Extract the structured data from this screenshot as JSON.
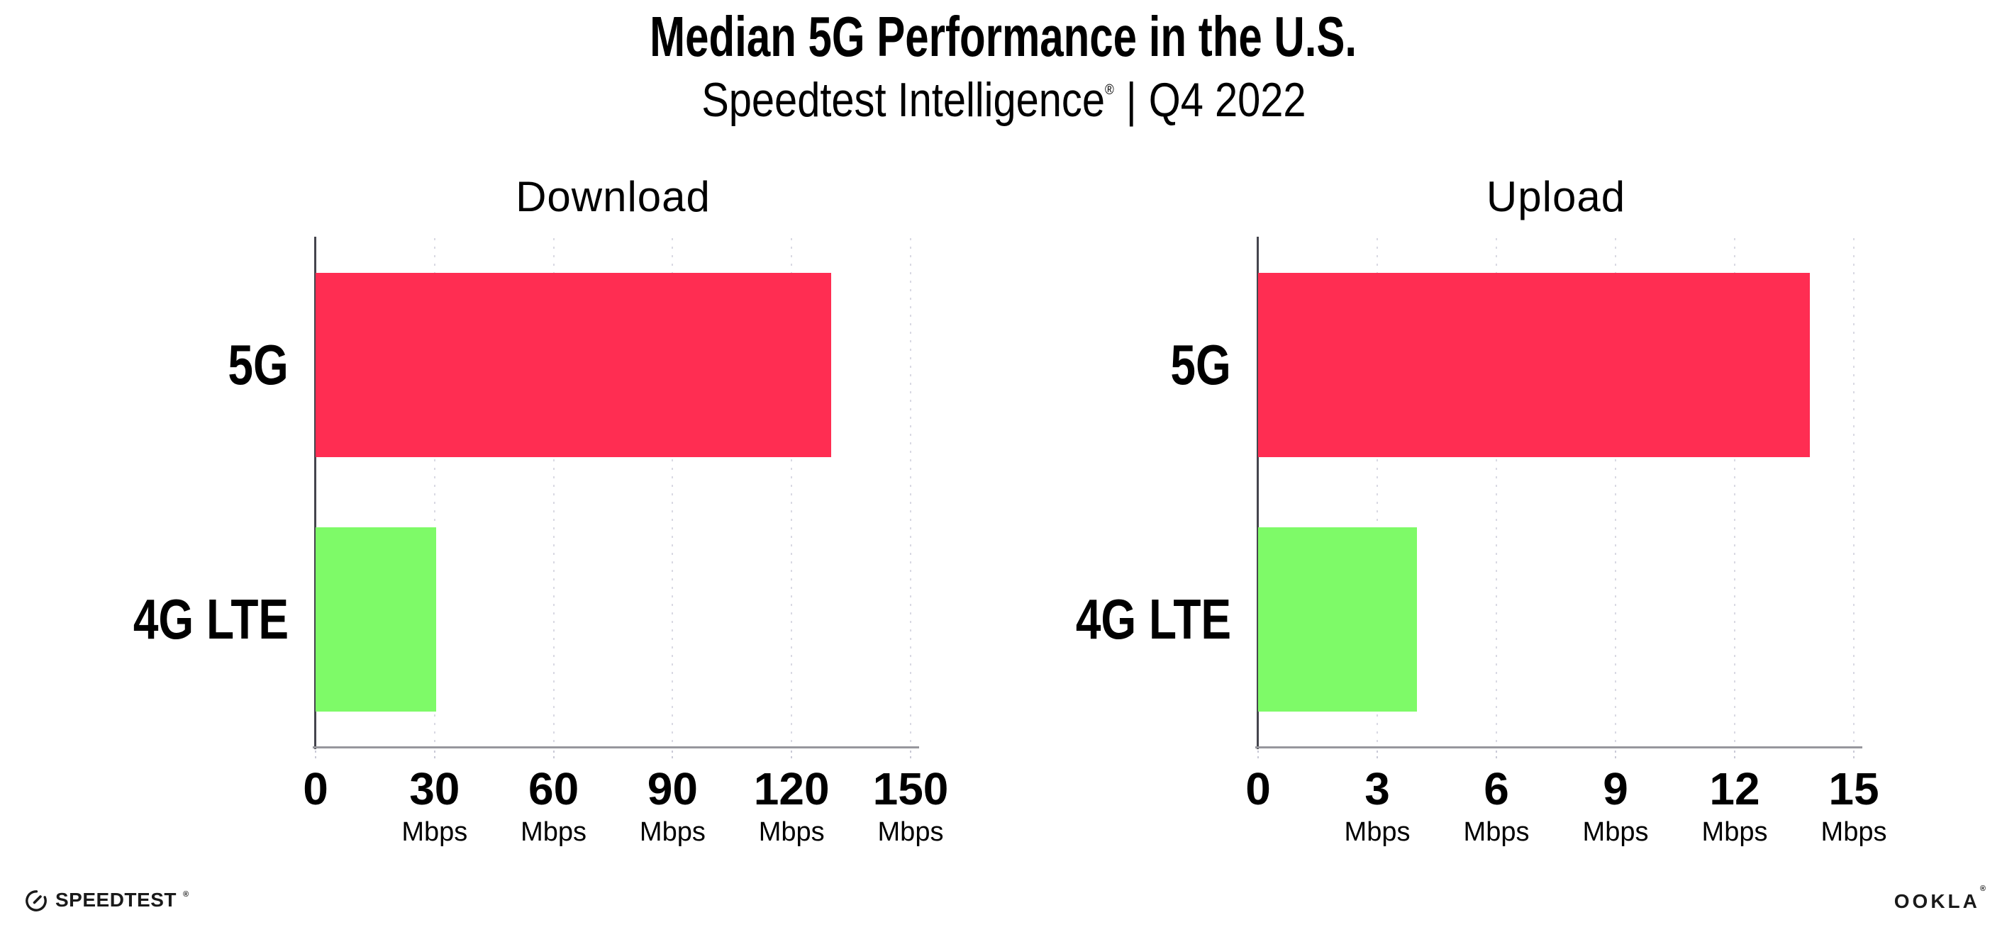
{
  "header": {
    "title": "Median 5G Performance in the U.S.",
    "subtitle_brand": "Speedtest Intelligence",
    "subtitle_reg": "®",
    "subtitle_divider": "|",
    "subtitle_period": "Q4 2022"
  },
  "chart_data": [
    {
      "type": "bar",
      "orientation": "horizontal",
      "title": "Download",
      "categories": [
        "5G",
        "4G LTE"
      ],
      "values": [
        130,
        30.4
      ],
      "unit": "Mbps",
      "xlim": [
        0,
        150
      ],
      "xticks": [
        0,
        30,
        60,
        90,
        120,
        150
      ],
      "bar_colors": [
        "#ff2d52",
        "#7efa68"
      ],
      "grid": "vertical dotted",
      "legend": "none"
    },
    {
      "type": "bar",
      "orientation": "horizontal",
      "title": "Upload",
      "categories": [
        "5G",
        "4G LTE"
      ],
      "values": [
        13.9,
        4.0
      ],
      "unit": "Mbps",
      "xlim": [
        0,
        15
      ],
      "xticks": [
        0,
        3,
        6,
        9,
        12,
        15
      ],
      "bar_colors": [
        "#ff2d52",
        "#7efa68"
      ],
      "grid": "vertical dotted",
      "legend": "none"
    }
  ],
  "colors": {
    "bar_5g": "#ff2d52",
    "bar_4g_lte": "#7efa68",
    "gridline": "#d9d9e3",
    "spine_left": "#45454d",
    "spine_bottom": "#97979d",
    "text": "#000000",
    "background": "#ffffff"
  },
  "footer": {
    "speedtest_wordmark": "SPEEDTEST",
    "speedtest_reg": "®",
    "ookla_wordmark": "OOKLA",
    "ookla_reg": "®"
  }
}
